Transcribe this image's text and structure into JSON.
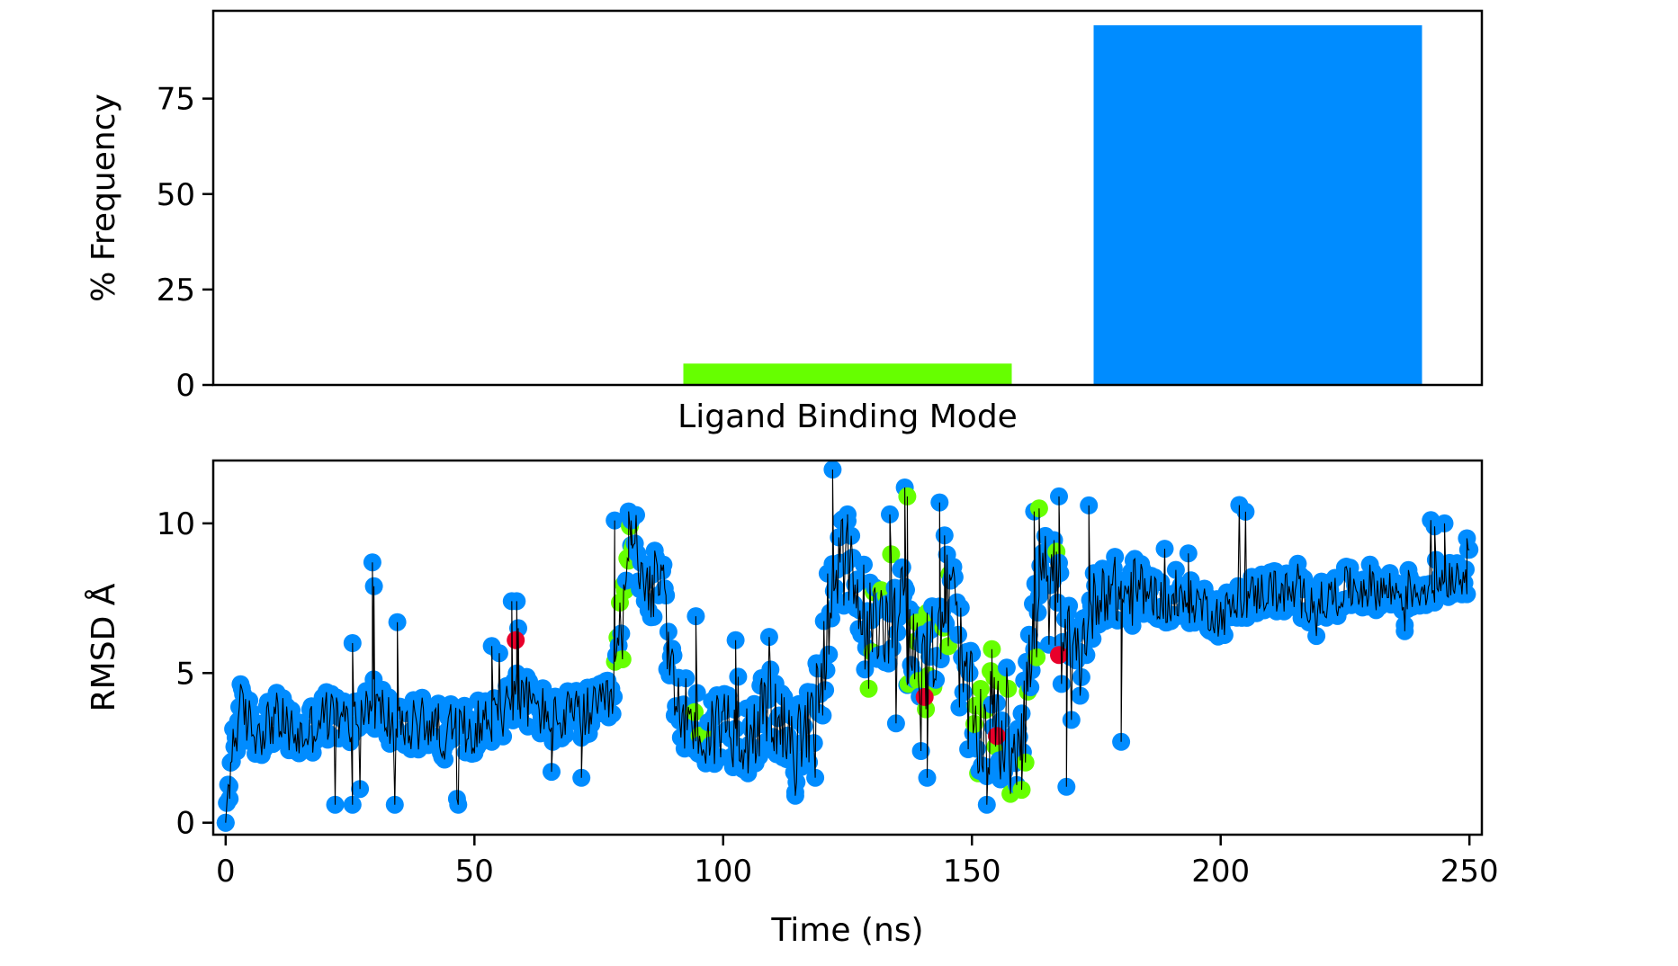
{
  "chart_data": [
    {
      "type": "bar",
      "xlabel": "Ligand Binding Mode",
      "ylabel": "% Frequency",
      "categories": [
        "",
        "",
        ""
      ],
      "values": [
        0,
        5.6,
        94.2
      ],
      "colors": [
        "#e8002a",
        "#66ff00",
        "#008cff"
      ],
      "ylim": [
        0,
        98
      ],
      "yticks": [
        0,
        25,
        50,
        75
      ],
      "grid": false
    },
    {
      "type": "scatter",
      "xlabel": "Time (ns)",
      "ylabel": "RMSD Å",
      "xlim": [
        -2.5,
        252.5
      ],
      "ylim": [
        -0.4,
        12.1
      ],
      "xticks": [
        0,
        50,
        100,
        150,
        200,
        250
      ],
      "yticks": [
        0,
        5,
        10
      ],
      "grid": false,
      "line_color": "#000000",
      "mode_colors": {
        "red": "#e8002a",
        "green": "#66ff00",
        "blue": "#008cff"
      },
      "trace_anchors": [
        {
          "x": 0,
          "y": 0.0
        },
        {
          "x": 1,
          "y": 2.2
        },
        {
          "x": 3,
          "y": 3.8
        },
        {
          "x": 6,
          "y": 3.0
        },
        {
          "x": 10,
          "y": 3.5
        },
        {
          "x": 15,
          "y": 2.8
        },
        {
          "x": 20,
          "y": 3.6
        },
        {
          "x": 25,
          "y": 3.3
        },
        {
          "x": 30,
          "y": 4.0
        },
        {
          "x": 35,
          "y": 3.0
        },
        {
          "x": 40,
          "y": 3.4
        },
        {
          "x": 45,
          "y": 2.9
        },
        {
          "x": 50,
          "y": 3.2
        },
        {
          "x": 55,
          "y": 3.6
        },
        {
          "x": 58,
          "y": 4.3
        },
        {
          "x": 62,
          "y": 3.9
        },
        {
          "x": 66,
          "y": 3.4
        },
        {
          "x": 70,
          "y": 3.6
        },
        {
          "x": 75,
          "y": 3.7
        },
        {
          "x": 78,
          "y": 4.2
        },
        {
          "x": 80,
          "y": 7.5
        },
        {
          "x": 82,
          "y": 9.6
        },
        {
          "x": 85,
          "y": 8.0
        },
        {
          "x": 88,
          "y": 7.6
        },
        {
          "x": 90,
          "y": 4.2
        },
        {
          "x": 93,
          "y": 3.6
        },
        {
          "x": 96,
          "y": 2.8
        },
        {
          "x": 100,
          "y": 3.4
        },
        {
          "x": 105,
          "y": 3.0
        },
        {
          "x": 110,
          "y": 3.8
        },
        {
          "x": 114,
          "y": 2.2
        },
        {
          "x": 117,
          "y": 3.2
        },
        {
          "x": 120,
          "y": 5.0
        },
        {
          "x": 122,
          "y": 8.8
        },
        {
          "x": 126,
          "y": 8.0
        },
        {
          "x": 130,
          "y": 6.0
        },
        {
          "x": 134,
          "y": 7.5
        },
        {
          "x": 137,
          "y": 6.5
        },
        {
          "x": 140,
          "y": 4.2
        },
        {
          "x": 143,
          "y": 6.8
        },
        {
          "x": 146,
          "y": 7.5
        },
        {
          "x": 149,
          "y": 4.0
        },
        {
          "x": 152,
          "y": 3.0
        },
        {
          "x": 155,
          "y": 3.4
        },
        {
          "x": 158,
          "y": 2.4
        },
        {
          "x": 161,
          "y": 4.5
        },
        {
          "x": 164,
          "y": 8.0
        },
        {
          "x": 167,
          "y": 7.5
        },
        {
          "x": 170,
          "y": 4.8
        },
        {
          "x": 173,
          "y": 6.5
        },
        {
          "x": 176,
          "y": 8.0
        },
        {
          "x": 180,
          "y": 7.6
        },
        {
          "x": 185,
          "y": 7.8
        },
        {
          "x": 190,
          "y": 7.2
        },
        {
          "x": 195,
          "y": 7.4
        },
        {
          "x": 200,
          "y": 6.9
        },
        {
          "x": 205,
          "y": 7.5
        },
        {
          "x": 210,
          "y": 7.8
        },
        {
          "x": 215,
          "y": 7.6
        },
        {
          "x": 220,
          "y": 7.3
        },
        {
          "x": 225,
          "y": 7.8
        },
        {
          "x": 230,
          "y": 7.9
        },
        {
          "x": 235,
          "y": 7.7
        },
        {
          "x": 240,
          "y": 7.8
        },
        {
          "x": 245,
          "y": 8.2
        },
        {
          "x": 250,
          "y": 8.4
        }
      ],
      "green_intervals": [
        [
          78,
          82
        ],
        [
          93,
          97
        ],
        [
          128,
          146
        ],
        [
          150,
          168
        ]
      ],
      "red_points": [
        {
          "x": 58.3,
          "y": 6.1
        },
        {
          "x": 140.5,
          "y": 4.2
        },
        {
          "x": 155.0,
          "y": 2.9
        },
        {
          "x": 167.5,
          "y": 5.6
        }
      ],
      "notable_points": [
        {
          "x": 0,
          "y": 0.0
        },
        {
          "x": 0.8,
          "y": 0.8
        },
        {
          "x": 29.5,
          "y": 8.7
        },
        {
          "x": 29.8,
          "y": 7.9
        },
        {
          "x": 25.5,
          "y": 6.0
        },
        {
          "x": 34.5,
          "y": 6.7
        },
        {
          "x": 53.5,
          "y": 5.9
        },
        {
          "x": 58.5,
          "y": 7.4
        },
        {
          "x": 57.5,
          "y": 7.4
        },
        {
          "x": 58.8,
          "y": 6.5
        },
        {
          "x": 65.5,
          "y": 1.7
        },
        {
          "x": 71.5,
          "y": 1.5
        },
        {
          "x": 78.2,
          "y": 10.1
        },
        {
          "x": 81.0,
          "y": 10.4
        },
        {
          "x": 81.5,
          "y": 10.1
        },
        {
          "x": 94.5,
          "y": 6.9
        },
        {
          "x": 102.5,
          "y": 6.1
        },
        {
          "x": 114.5,
          "y": 0.9
        },
        {
          "x": 122.0,
          "y": 11.8
        },
        {
          "x": 125.0,
          "y": 10.3
        },
        {
          "x": 133.5,
          "y": 10.3
        },
        {
          "x": 136.5,
          "y": 11.2
        },
        {
          "x": 137.0,
          "y": 10.9
        },
        {
          "x": 141.0,
          "y": 1.5
        },
        {
          "x": 143.5,
          "y": 10.7
        },
        {
          "x": 144.5,
          "y": 9.6
        },
        {
          "x": 153.0,
          "y": 0.6
        },
        {
          "x": 154.0,
          "y": 5.8
        },
        {
          "x": 160.0,
          "y": 1.1
        },
        {
          "x": 162.5,
          "y": 10.4
        },
        {
          "x": 163.5,
          "y": 10.5
        },
        {
          "x": 167.5,
          "y": 10.9
        },
        {
          "x": 169.0,
          "y": 1.2
        },
        {
          "x": 173.5,
          "y": 10.6
        },
        {
          "x": 180.0,
          "y": 2.7
        },
        {
          "x": 193.5,
          "y": 9.0
        },
        {
          "x": 237.0,
          "y": 6.4
        },
        {
          "x": 243.0,
          "y": 9.9
        },
        {
          "x": 245.0,
          "y": 10.0
        },
        {
          "x": 249.5,
          "y": 9.5
        }
      ],
      "sample_step_ns": 0.25
    }
  ]
}
